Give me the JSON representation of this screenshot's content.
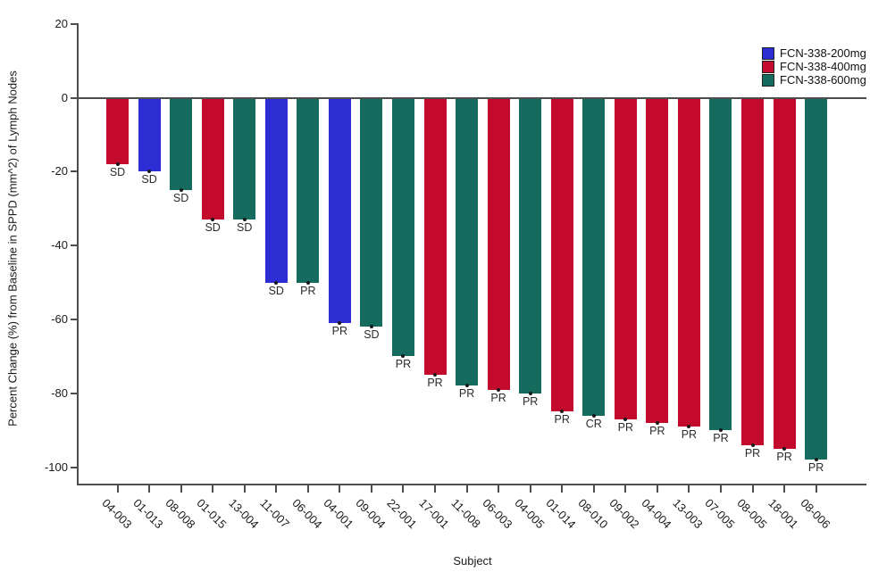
{
  "chart_data": {
    "type": "bar",
    "variant": "waterfall",
    "title": "",
    "xlabel": "Subject",
    "ylabel": "Percent Change (%) from Baseline in SPPD (mm^2) of Lymph Nodes",
    "ylim": [
      -100,
      20
    ],
    "yticks": [
      20,
      0,
      -20,
      -40,
      -60,
      -80,
      -100
    ],
    "grid": false,
    "legend_position": "top-right",
    "legend": [
      {
        "label": "FCN-338-200mg",
        "color": "#2d2dd4"
      },
      {
        "label": "FCN-338-400mg",
        "color": "#c3092c"
      },
      {
        "label": "FCN-338-600mg",
        "color": "#156b5d"
      }
    ],
    "points": [
      {
        "subject": "04-003",
        "value": -18,
        "dose": "FCN-338-400mg",
        "response": "SD"
      },
      {
        "subject": "01-013",
        "value": -20,
        "dose": "FCN-338-200mg",
        "response": "SD"
      },
      {
        "subject": "08-008",
        "value": -25,
        "dose": "FCN-338-600mg",
        "response": "SD"
      },
      {
        "subject": "01-015",
        "value": -33,
        "dose": "FCN-338-400mg",
        "response": "SD"
      },
      {
        "subject": "13-004",
        "value": -33,
        "dose": "FCN-338-600mg",
        "response": "SD"
      },
      {
        "subject": "11-007",
        "value": -50,
        "dose": "FCN-338-200mg",
        "response": "SD"
      },
      {
        "subject": "06-004",
        "value": -50,
        "dose": "FCN-338-600mg",
        "response": "PR"
      },
      {
        "subject": "04-001",
        "value": -61,
        "dose": "FCN-338-200mg",
        "response": "PR"
      },
      {
        "subject": "09-004",
        "value": -62,
        "dose": "FCN-338-600mg",
        "response": "SD"
      },
      {
        "subject": "22-001",
        "value": -70,
        "dose": "FCN-338-600mg",
        "response": "PR"
      },
      {
        "subject": "17-001",
        "value": -75,
        "dose": "FCN-338-400mg",
        "response": "PR"
      },
      {
        "subject": "11-008",
        "value": -78,
        "dose": "FCN-338-600mg",
        "response": "PR"
      },
      {
        "subject": "06-003",
        "value": -79,
        "dose": "FCN-338-400mg",
        "response": "PR"
      },
      {
        "subject": "04-005",
        "value": -80,
        "dose": "FCN-338-600mg",
        "response": "PR"
      },
      {
        "subject": "01-014",
        "value": -85,
        "dose": "FCN-338-400mg",
        "response": "PR"
      },
      {
        "subject": "08-010",
        "value": -86,
        "dose": "FCN-338-600mg",
        "response": "CR"
      },
      {
        "subject": "09-002",
        "value": -87,
        "dose": "FCN-338-400mg",
        "response": "PR"
      },
      {
        "subject": "04-004",
        "value": -88,
        "dose": "FCN-338-400mg",
        "response": "PR"
      },
      {
        "subject": "13-003",
        "value": -89,
        "dose": "FCN-338-400mg",
        "response": "PR"
      },
      {
        "subject": "07-005",
        "value": -90,
        "dose": "FCN-338-600mg",
        "response": "PR"
      },
      {
        "subject": "08-005",
        "value": -94,
        "dose": "FCN-338-400mg",
        "response": "PR"
      },
      {
        "subject": "18-001",
        "value": -95,
        "dose": "FCN-338-400mg",
        "response": "PR"
      },
      {
        "subject": "08-006",
        "value": -98,
        "dose": "FCN-338-600mg",
        "response": "PR"
      }
    ]
  }
}
